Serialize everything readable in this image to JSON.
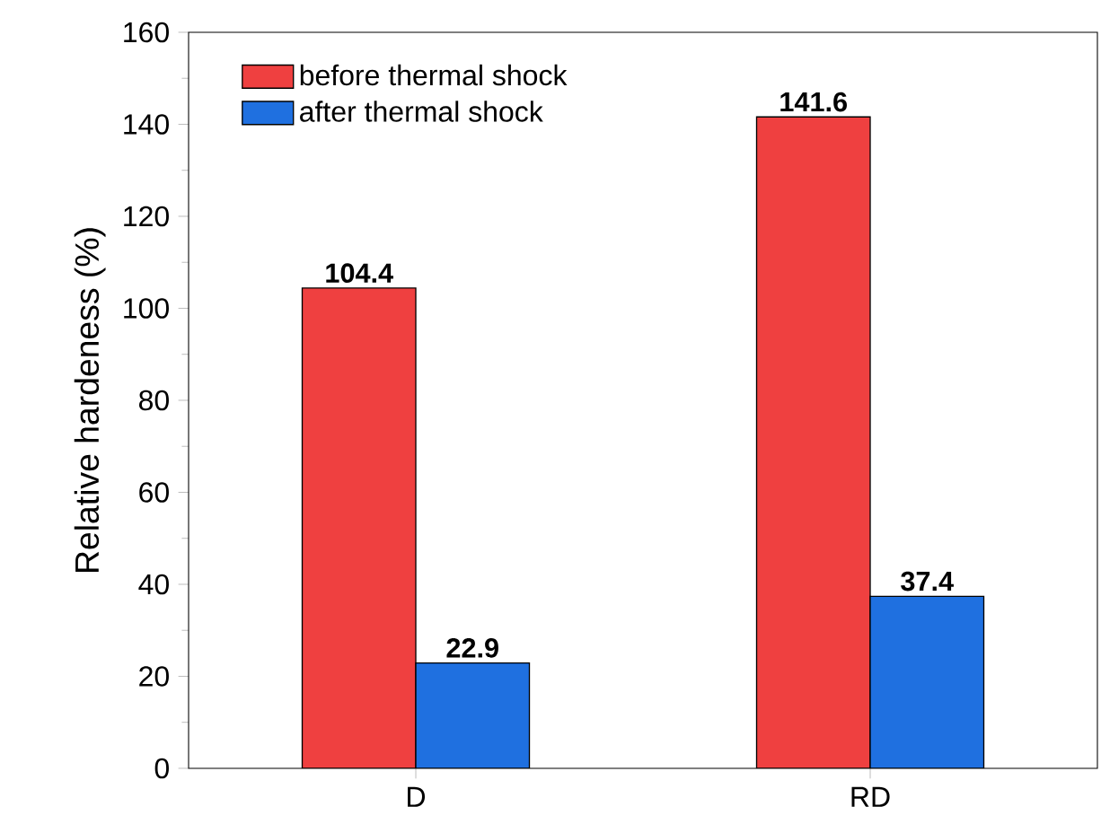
{
  "chart_data": {
    "type": "bar",
    "ylabel": "Relative hardeness (%)",
    "categories": [
      "D",
      "RD"
    ],
    "series": [
      {
        "name": "before thermal shock",
        "color": "#ef4040",
        "values": [
          104.4,
          141.6
        ]
      },
      {
        "name": "after thermal shock",
        "color": "#1f70e0",
        "values": [
          22.9,
          37.4
        ]
      }
    ],
    "ylim": [
      0,
      160
    ],
    "yticks": [
      0,
      20,
      40,
      60,
      80,
      100,
      120,
      140,
      160
    ],
    "data_labels": true,
    "legend": "top left",
    "grid": false
  }
}
